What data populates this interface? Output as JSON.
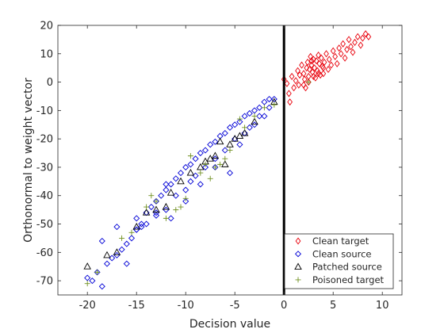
{
  "chart_data": {
    "type": "scatter",
    "xlabel": "Decision value",
    "ylabel": "Orthonormal to weight vector",
    "xlim": [
      -23,
      12
    ],
    "ylim": [
      -75,
      20
    ],
    "xticks": [
      -20,
      -15,
      -10,
      -5,
      0,
      5,
      10
    ],
    "yticks": [
      20,
      10,
      0,
      -10,
      -20,
      -30,
      -40,
      -50,
      -60,
      -70
    ],
    "tick_labels_x": [
      "-20",
      "-15",
      "-10",
      "-5",
      "0",
      "5",
      "10"
    ],
    "tick_labels_y": [
      "20",
      "10",
      "0",
      "-10",
      "-20",
      "-30",
      "-40",
      "-50",
      "-60",
      "-70"
    ],
    "grid": false,
    "legend_position": "bottom-right",
    "decision_boundary": {
      "x": 0,
      "color": "#000000"
    },
    "series": [
      {
        "name": "Clean target",
        "marker": "diamond",
        "color": "#e8000b",
        "points": [
          [
            0.0,
            1.0
          ],
          [
            0.3,
            -0.5
          ],
          [
            0.5,
            -4.0
          ],
          [
            0.6,
            -7.0
          ],
          [
            0.8,
            2.0
          ],
          [
            1.0,
            -2.0
          ],
          [
            1.2,
            0.5
          ],
          [
            1.4,
            4.0
          ],
          [
            1.5,
            -1.0
          ],
          [
            1.6,
            2.5
          ],
          [
            1.8,
            6.0
          ],
          [
            2.0,
            3.0
          ],
          [
            2.1,
            1.0
          ],
          [
            2.2,
            -2.0
          ],
          [
            2.3,
            5.0
          ],
          [
            2.4,
            7.0
          ],
          [
            2.5,
            2.0
          ],
          [
            2.6,
            4.5
          ],
          [
            2.7,
            9.0
          ],
          [
            2.8,
            6.0
          ],
          [
            2.9,
            3.5
          ],
          [
            3.0,
            8.0
          ],
          [
            3.1,
            5.0
          ],
          [
            3.2,
            1.5
          ],
          [
            3.3,
            7.5
          ],
          [
            3.4,
            4.0
          ],
          [
            3.5,
            9.5
          ],
          [
            3.6,
            6.5
          ],
          [
            3.7,
            2.5
          ],
          [
            3.8,
            8.5
          ],
          [
            3.9,
            5.5
          ],
          [
            4.0,
            3.0
          ],
          [
            4.1,
            7.0
          ],
          [
            4.3,
            10.0
          ],
          [
            4.5,
            4.5
          ],
          [
            4.6,
            8.0
          ],
          [
            4.8,
            6.0
          ],
          [
            5.0,
            11.0
          ],
          [
            5.2,
            9.0
          ],
          [
            5.4,
            6.5
          ],
          [
            5.6,
            12.0
          ],
          [
            5.8,
            10.0
          ],
          [
            6.0,
            13.5
          ],
          [
            6.2,
            8.5
          ],
          [
            6.4,
            11.5
          ],
          [
            6.6,
            15.0
          ],
          [
            6.8,
            12.5
          ],
          [
            7.0,
            10.5
          ],
          [
            7.2,
            14.0
          ],
          [
            7.5,
            16.0
          ],
          [
            7.8,
            13.0
          ],
          [
            8.0,
            15.5
          ],
          [
            8.3,
            17.0
          ],
          [
            8.6,
            16.0
          ],
          [
            2.0,
            -1.0
          ],
          [
            2.5,
            0.0
          ],
          [
            3.0,
            2.0
          ],
          [
            3.5,
            3.0
          ],
          [
            4.0,
            5.0
          ],
          [
            2.8,
            7.5
          ]
        ]
      },
      {
        "name": "Clean source",
        "marker": "square",
        "color": "#0000d6",
        "points": [
          [
            -20.0,
            -69.0
          ],
          [
            -19.5,
            -70.0
          ],
          [
            -19.0,
            -67.0
          ],
          [
            -18.5,
            -72.0
          ],
          [
            -18.5,
            -56.0
          ],
          [
            -18.0,
            -64.0
          ],
          [
            -17.5,
            -62.0
          ],
          [
            -17.0,
            -61.0
          ],
          [
            -16.5,
            -59.0
          ],
          [
            -16.0,
            -57.0
          ],
          [
            -16.0,
            -64.0
          ],
          [
            -15.5,
            -55.0
          ],
          [
            -15.0,
            -52.0
          ],
          [
            -15.0,
            -48.0
          ],
          [
            -14.5,
            -50.0
          ],
          [
            -14.0,
            -46.0
          ],
          [
            -14.0,
            -50.0
          ],
          [
            -13.5,
            -44.0
          ],
          [
            -13.0,
            -42.0
          ],
          [
            -13.0,
            -46.0
          ],
          [
            -12.5,
            -40.0
          ],
          [
            -12.0,
            -38.0
          ],
          [
            -12.0,
            -45.0
          ],
          [
            -11.5,
            -36.0
          ],
          [
            -11.0,
            -34.0
          ],
          [
            -11.0,
            -40.0
          ],
          [
            -10.5,
            -32.0
          ],
          [
            -10.0,
            -30.0
          ],
          [
            -10.0,
            -38.0
          ],
          [
            -9.5,
            -29.0
          ],
          [
            -9.0,
            -27.0
          ],
          [
            -9.0,
            -33.0
          ],
          [
            -8.5,
            -25.0
          ],
          [
            -8.0,
            -24.0
          ],
          [
            -8.0,
            -30.0
          ],
          [
            -7.5,
            -22.0
          ],
          [
            -7.0,
            -21.0
          ],
          [
            -7.0,
            -27.0
          ],
          [
            -6.5,
            -19.0
          ],
          [
            -6.0,
            -18.0
          ],
          [
            -6.0,
            -24.0
          ],
          [
            -5.5,
            -16.0
          ],
          [
            -5.0,
            -15.0
          ],
          [
            -5.0,
            -20.0
          ],
          [
            -4.5,
            -14.0
          ],
          [
            -4.0,
            -12.0
          ],
          [
            -4.0,
            -18.0
          ],
          [
            -3.5,
            -11.0
          ],
          [
            -3.0,
            -10.0
          ],
          [
            -3.0,
            -15.0
          ],
          [
            -2.5,
            -9.0
          ],
          [
            -2.0,
            -7.0
          ],
          [
            -2.0,
            -12.0
          ],
          [
            -1.5,
            -6.0
          ],
          [
            -1.0,
            -6.0
          ],
          [
            -13.0,
            -47.0
          ],
          [
            -11.5,
            -48.0
          ],
          [
            -10.0,
            -42.0
          ],
          [
            -8.5,
            -36.0
          ],
          [
            -7.0,
            -30.0
          ],
          [
            -5.5,
            -32.0
          ],
          [
            -4.5,
            -22.0
          ],
          [
            -3.5,
            -16.0
          ],
          [
            -2.5,
            -12.0
          ],
          [
            -1.5,
            -9.0
          ],
          [
            -15.0,
            -52.0
          ],
          [
            -14.5,
            -51.0
          ],
          [
            -17.0,
            -51.0
          ],
          [
            -12.0,
            -36.0
          ],
          [
            -9.5,
            -35.0
          ]
        ]
      },
      {
        "name": "Patched source",
        "marker": "triangle",
        "color": "#000000",
        "points": [
          [
            -20.0,
            -65.0
          ],
          [
            -18.0,
            -61.0
          ],
          [
            -17.0,
            -60.0
          ],
          [
            -15.0,
            -51.0
          ],
          [
            -14.0,
            -46.0
          ],
          [
            -13.0,
            -45.0
          ],
          [
            -12.0,
            -44.0
          ],
          [
            -11.5,
            -39.0
          ],
          [
            -10.5,
            -35.0
          ],
          [
            -9.5,
            -32.0
          ],
          [
            -8.5,
            -30.0
          ],
          [
            -8.0,
            -28.0
          ],
          [
            -7.5,
            -27.0
          ],
          [
            -7.0,
            -26.0
          ],
          [
            -6.5,
            -21.0
          ],
          [
            -6.0,
            -29.0
          ],
          [
            -5.5,
            -22.0
          ],
          [
            -5.0,
            -20.0
          ],
          [
            -4.5,
            -19.0
          ],
          [
            -4.0,
            -18.0
          ],
          [
            -3.0,
            -14.0
          ],
          [
            -1.0,
            -7.0
          ]
        ]
      },
      {
        "name": "Poisoned target",
        "marker": "plus",
        "color": "#709020",
        "points": [
          [
            -20.0,
            -71.0
          ],
          [
            -19.0,
            -67.0
          ],
          [
            -16.5,
            -55.0
          ],
          [
            -15.5,
            -53.0
          ],
          [
            -14.0,
            -44.0
          ],
          [
            -13.0,
            -42.0
          ],
          [
            -12.0,
            -48.0
          ],
          [
            -11.0,
            -45.0
          ],
          [
            -10.0,
            -41.0
          ],
          [
            -9.5,
            -26.0
          ],
          [
            -8.5,
            -32.0
          ],
          [
            -8.0,
            -29.0
          ],
          [
            -7.5,
            -34.0
          ],
          [
            -7.0,
            -30.0
          ],
          [
            -6.5,
            -29.0
          ],
          [
            -6.0,
            -27.0
          ],
          [
            -5.5,
            -24.0
          ],
          [
            -4.5,
            -13.0
          ],
          [
            -4.0,
            -16.0
          ],
          [
            -3.0,
            -12.0
          ],
          [
            -2.0,
            -9.0
          ],
          [
            -1.0,
            -8.0
          ],
          [
            2.5,
            0.0
          ],
          [
            -13.5,
            -40.0
          ],
          [
            -10.5,
            -44.0
          ]
        ]
      }
    ]
  }
}
